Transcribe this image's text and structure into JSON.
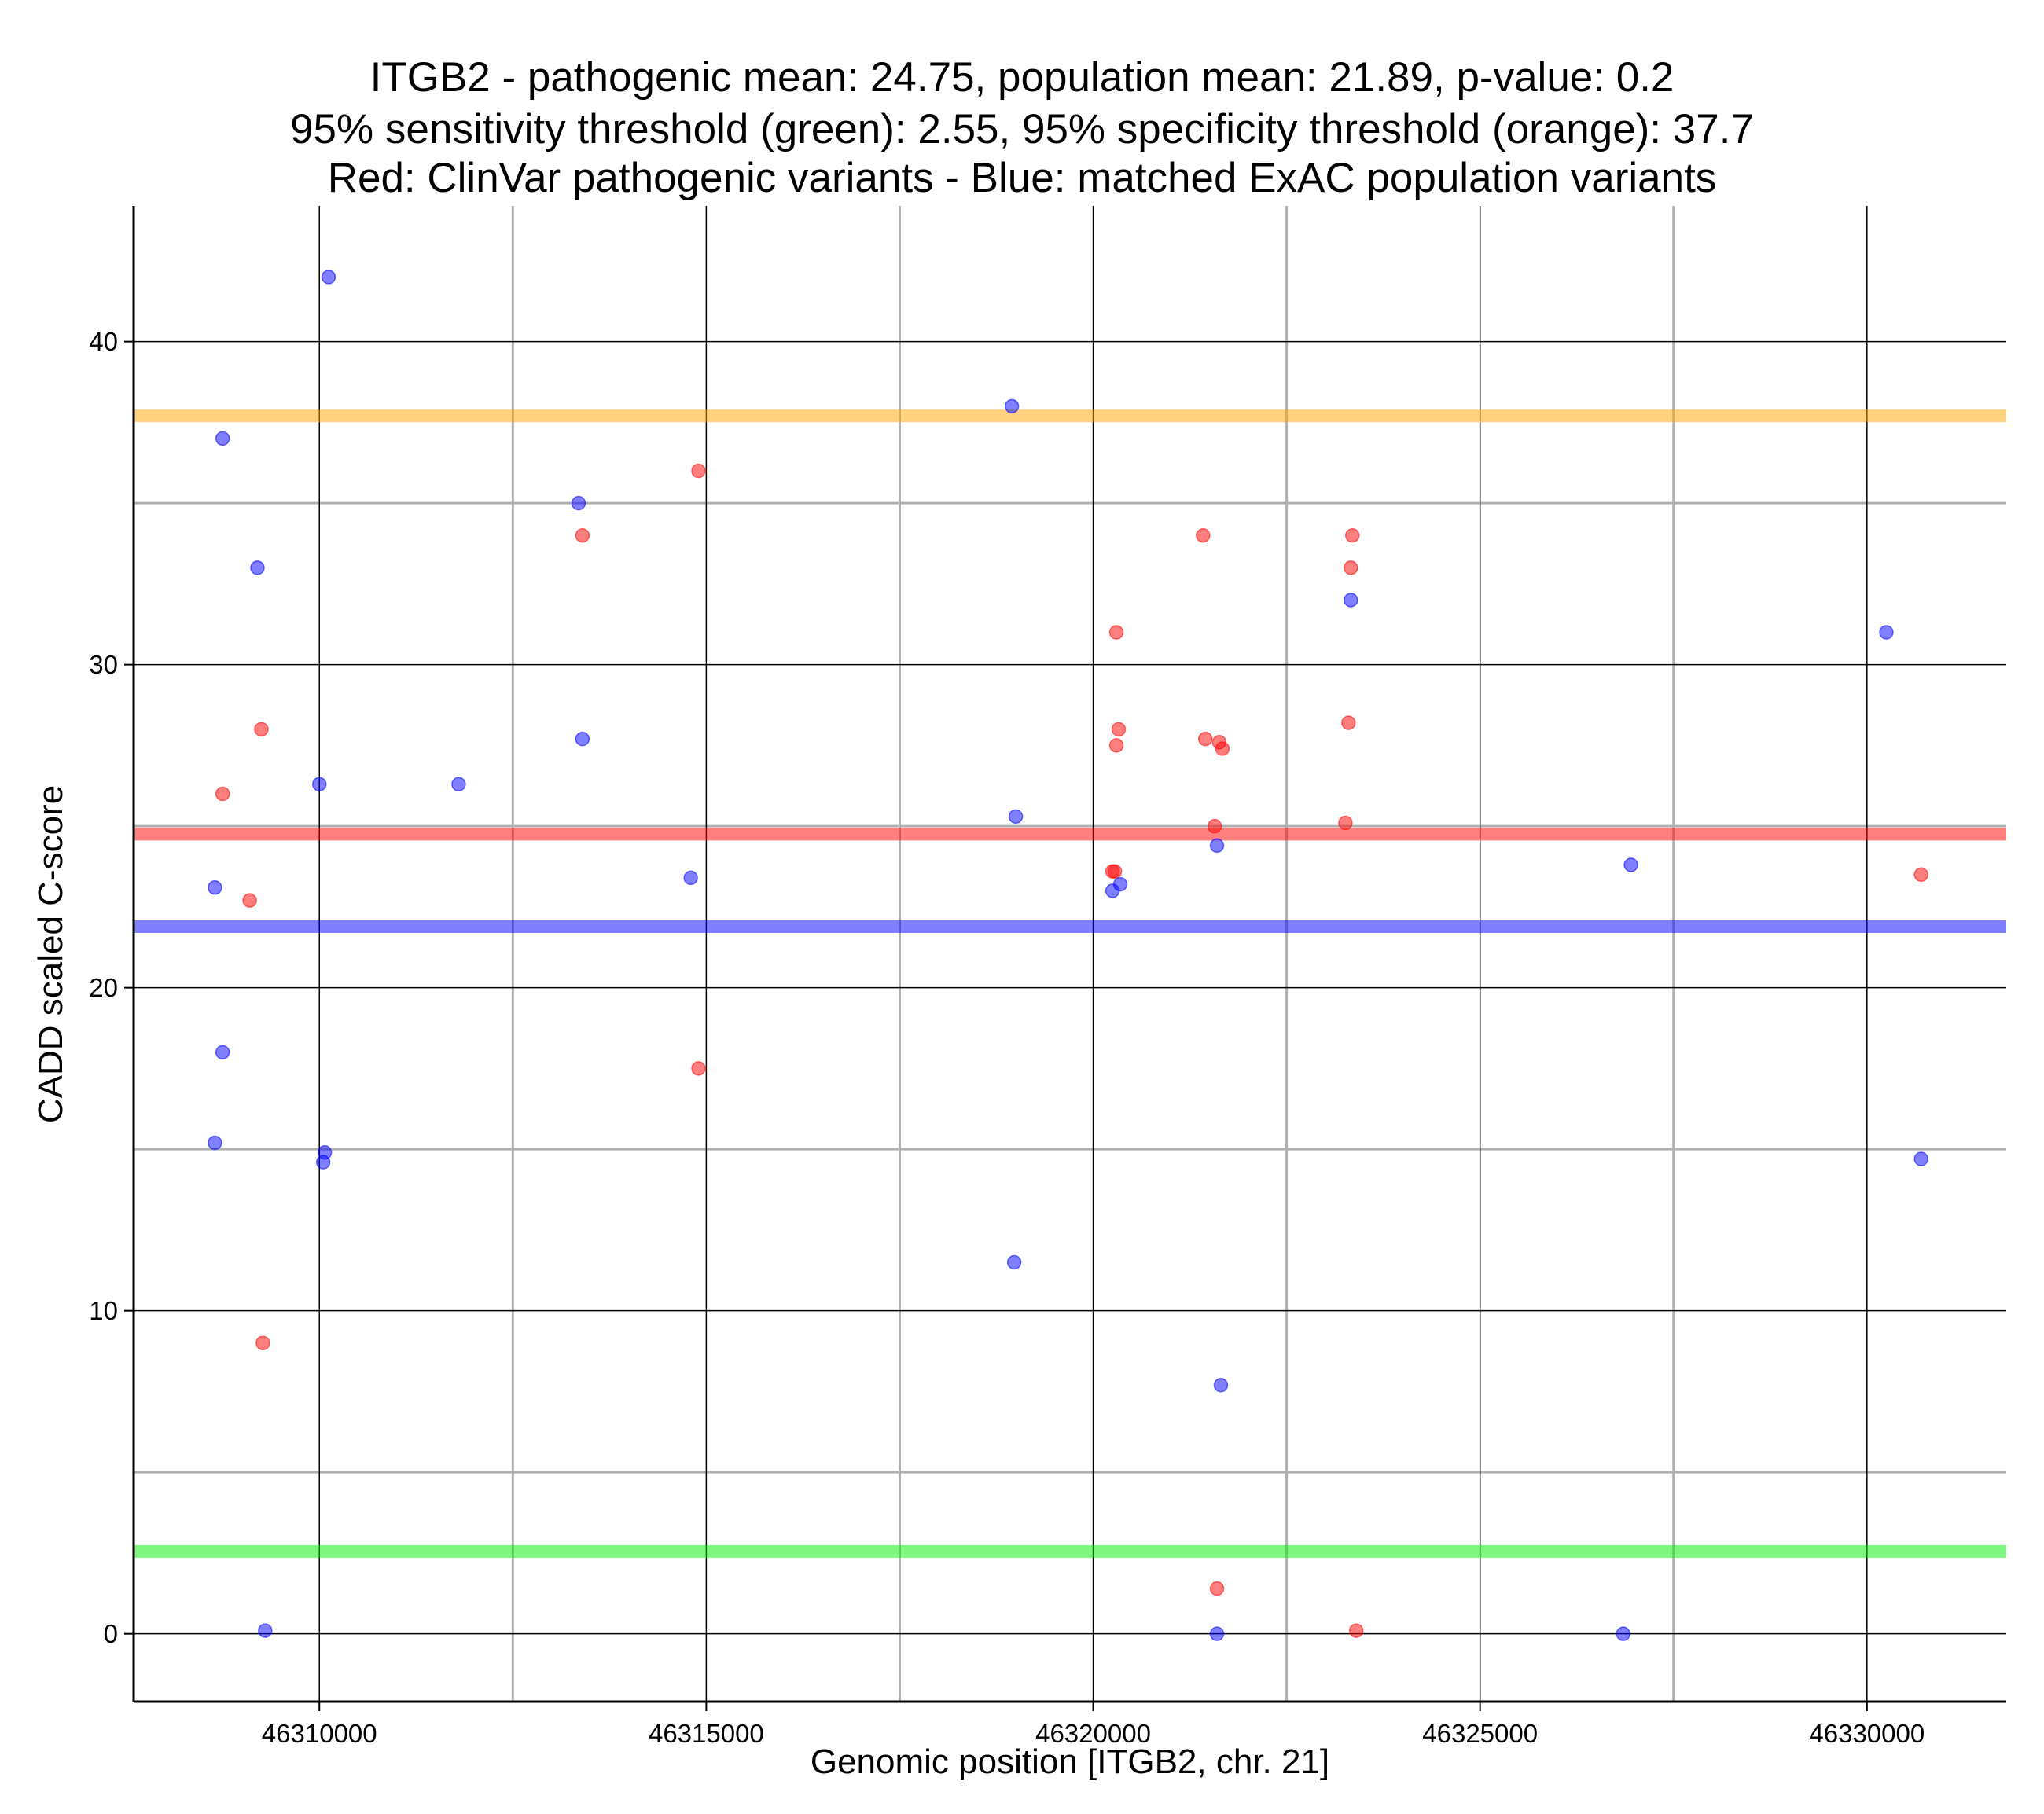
{
  "chart_data": {
    "type": "scatter",
    "title": [
      "ITGB2 - pathogenic mean: 24.75, population mean: 21.89, p-value: 0.2",
      "95% sensitivity threshold (green): 2.55, 95% specificity threshold (orange): 37.7",
      "Red: ClinVar pathogenic variants - Blue: matched ExAC population variants"
    ],
    "xlabel": "Genomic position [ITGB2, chr. 21]",
    "ylabel": "CADD scaled C-score",
    "xlim": [
      46307600,
      46331800
    ],
    "ylim": [
      -2.1,
      44.2
    ],
    "xticks": [
      46310000,
      46315000,
      46320000,
      46325000,
      46330000
    ],
    "xtick_labels": [
      "46310000",
      "46315000",
      "46320000",
      "46325000",
      "46330000"
    ],
    "yticks": [
      0,
      10,
      20,
      30,
      40
    ],
    "ytick_labels": [
      "0",
      "10",
      "20",
      "30",
      "40"
    ],
    "minor_x": [
      46312500,
      46317500,
      46322500,
      46327500
    ],
    "minor_y": [
      5,
      15,
      25,
      35
    ],
    "colors": {
      "pathogenic": "#ff0000",
      "population": "#0000ff",
      "sensitivity": "#00ee00",
      "specificity": "#ffa500",
      "major_grid": "#000000",
      "minor_grid": "#b0b0b0"
    },
    "hlines": [
      {
        "name": "specificity-threshold",
        "y": 37.7,
        "color": "#ffa500"
      },
      {
        "name": "pathogenic-mean",
        "y": 24.75,
        "color": "#ff0000"
      },
      {
        "name": "population-mean",
        "y": 21.89,
        "color": "#0000ff"
      },
      {
        "name": "sensitivity-threshold",
        "y": 2.55,
        "color": "#00ee00"
      }
    ],
    "series": [
      {
        "name": "ClinVar pathogenic variants",
        "color": "#ff0000",
        "points": [
          [
            46308750,
            26.0
          ],
          [
            46309100,
            22.7
          ],
          [
            46309250,
            28.0
          ],
          [
            46309270,
            9.0
          ],
          [
            46313400,
            34.0
          ],
          [
            46314900,
            36.0
          ],
          [
            46314900,
            17.5
          ],
          [
            46320250,
            23.6
          ],
          [
            46320280,
            23.6
          ],
          [
            46320300,
            31.0
          ],
          [
            46320300,
            27.5
          ],
          [
            46320330,
            28.0
          ],
          [
            46321420,
            34.0
          ],
          [
            46321450,
            27.7
          ],
          [
            46321570,
            25.0
          ],
          [
            46321600,
            1.4
          ],
          [
            46321630,
            27.6
          ],
          [
            46321670,
            27.4
          ],
          [
            46323300,
            28.2
          ],
          [
            46323350,
            34.0
          ],
          [
            46323330,
            33.0
          ],
          [
            46323260,
            25.1
          ],
          [
            46323400,
            0.1
          ],
          [
            46330700,
            23.5
          ]
        ]
      },
      {
        "name": "matched ExAC population variants",
        "color": "#0000ff",
        "points": [
          [
            46308650,
            23.1
          ],
          [
            46308750,
            37.0
          ],
          [
            46308650,
            15.2
          ],
          [
            46308750,
            18.0
          ],
          [
            46309200,
            33.0
          ],
          [
            46309300,
            0.1
          ],
          [
            46310000,
            26.3
          ],
          [
            46310050,
            14.6
          ],
          [
            46310070,
            14.9
          ],
          [
            46310120,
            42.0
          ],
          [
            46311800,
            26.3
          ],
          [
            46313350,
            35.0
          ],
          [
            46313400,
            27.7
          ],
          [
            46314800,
            23.4
          ],
          [
            46318950,
            38.0
          ],
          [
            46318980,
            11.5
          ],
          [
            46319000,
            25.3
          ],
          [
            46320250,
            23.0
          ],
          [
            46320350,
            23.2
          ],
          [
            46321600,
            24.4
          ],
          [
            46321600,
            0.0
          ],
          [
            46321650,
            7.7
          ],
          [
            46323330,
            32.0
          ],
          [
            46326850,
            0.0
          ],
          [
            46326950,
            23.8
          ],
          [
            46330250,
            31.0
          ],
          [
            46330700,
            14.7
          ]
        ]
      }
    ]
  }
}
